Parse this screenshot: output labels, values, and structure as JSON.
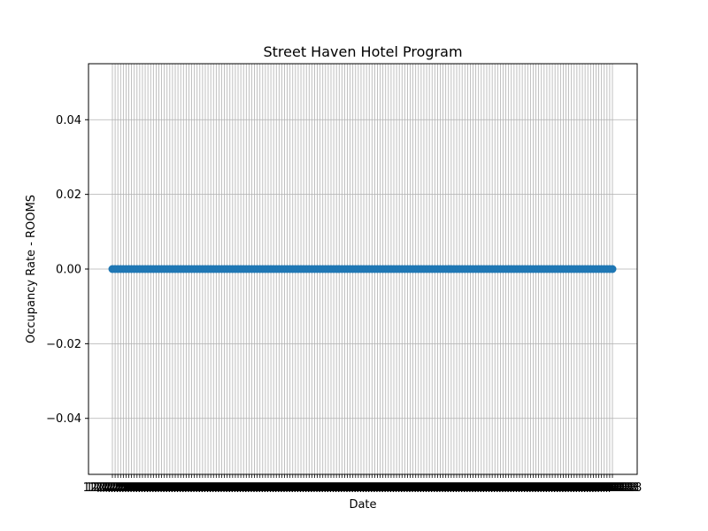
{
  "chart_data": {
    "type": "scatter",
    "title": "Street Haven Hotel Program",
    "xlabel": "Date",
    "ylabel": "Occupancy Rate - ROOMS",
    "ylim": [
      -0.055,
      0.055
    ],
    "y_ticks": [
      "−0.04",
      "−0.02",
      "0.00",
      "0.02",
      "0.04"
    ],
    "y_tick_values": [
      -0.04,
      -0.02,
      0.0,
      0.02,
      0.04
    ],
    "grid": true,
    "legend": "none",
    "point_count": 184,
    "y_value_all_points": 0.0,
    "x_tick_label_text": "12/1/2018",
    "series_color": "#1f77b4"
  }
}
